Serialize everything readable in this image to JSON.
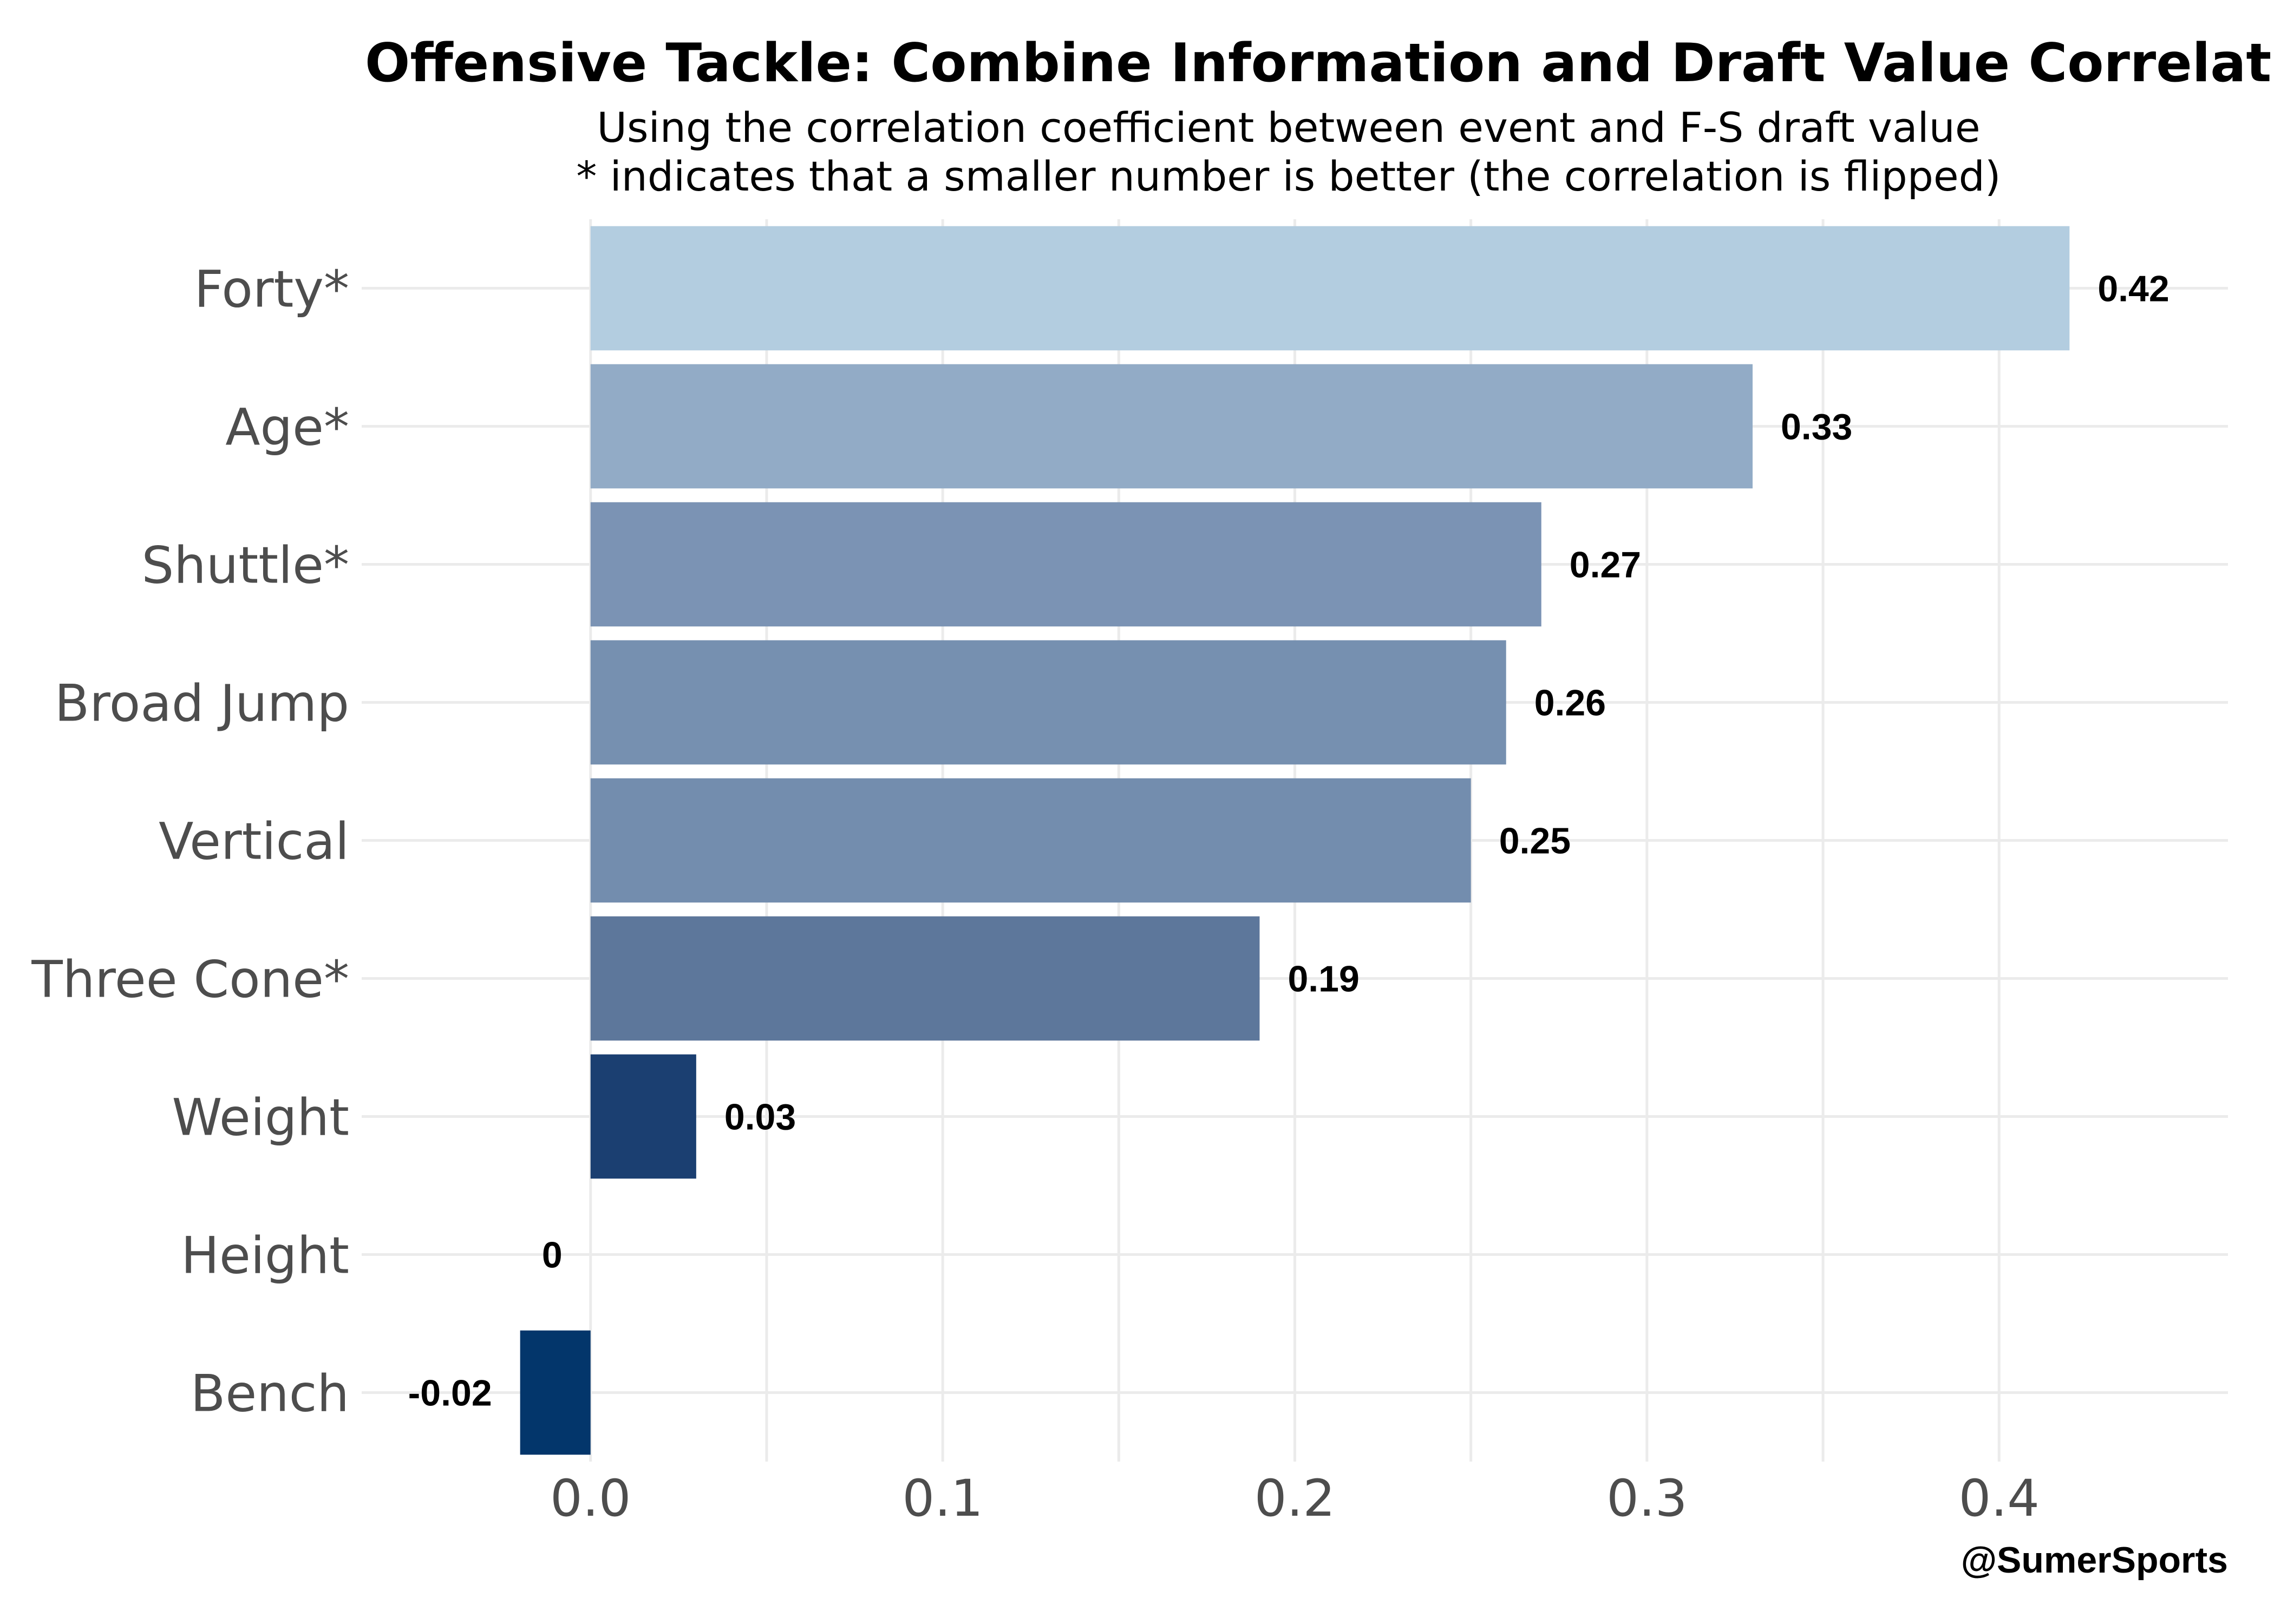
{
  "chart_data": {
    "type": "bar",
    "orientation": "horizontal",
    "title": "Offensive Tackle: Combine Information and Draft Value Correlation",
    "subtitle_lines": [
      "Using the correlation coefficient between event and F-S draft value",
      "* indicates that a smaller number is better (the correlation is flipped)"
    ],
    "categories": [
      "Forty*",
      "Age*",
      "Shuttle*",
      "Broad Jump",
      "Vertical",
      "Three Cone*",
      "Weight",
      "Height",
      "Bench"
    ],
    "values": [
      0.42,
      0.33,
      0.27,
      0.26,
      0.25,
      0.19,
      0.03,
      0,
      -0.02
    ],
    "value_labels": [
      "0.42",
      "0.33",
      "0.27",
      "0.26",
      "0.25",
      "0.19",
      "0.03",
      "0",
      "-0.02"
    ],
    "colors": [
      "#b3cde0",
      "#92abc6",
      "#7b93b4",
      "#7690b0",
      "#738dae",
      "#5d779b",
      "#1b3f71",
      "#0a3566",
      "#03366b"
    ],
    "xlim": [
      -0.065,
      0.465
    ],
    "x_ticks": [
      0.0,
      0.1,
      0.2,
      0.3,
      0.4
    ],
    "x_tick_labels": [
      "0.0",
      "0.1",
      "0.2",
      "0.3",
      "0.4"
    ],
    "xlabel": "",
    "ylabel": "",
    "grid": true,
    "legend": "none"
  },
  "credit": "@SumerSports"
}
